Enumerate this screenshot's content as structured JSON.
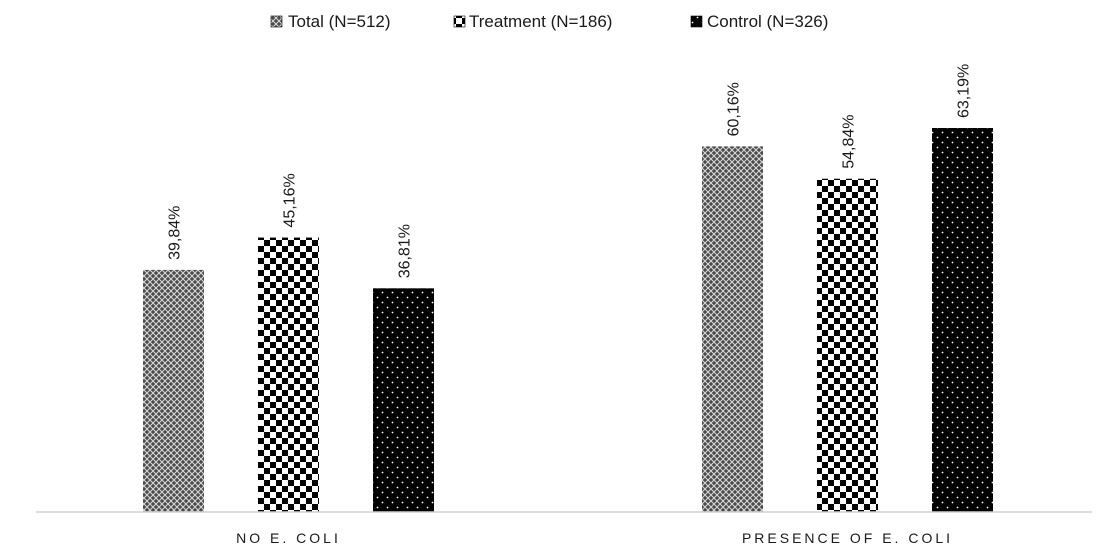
{
  "chart_data": {
    "type": "bar",
    "title": "",
    "xlabel": "",
    "ylabel": "",
    "categories": [
      "NO E. COLI",
      "PRESENCE OF E. COLI"
    ],
    "series": [
      {
        "name": "Total (N=512)",
        "values": [
          39.84,
          60.16
        ],
        "labels": [
          "39,84%",
          "60,16%"
        ],
        "pattern": "crosshatch",
        "color": "#555555"
      },
      {
        "name": "Treatment (N=186)",
        "values": [
          45.16,
          54.84
        ],
        "labels": [
          "45,16%",
          "54,84%"
        ],
        "pattern": "checker",
        "color": "#000000"
      },
      {
        "name": "Control (N=326)",
        "values": [
          36.81,
          63.19
        ],
        "labels": [
          "36,81%",
          "63,19%"
        ],
        "pattern": "dots",
        "color": "#000000"
      }
    ],
    "ylim": [
      0,
      70
    ],
    "grid": false,
    "legend": "top-center",
    "data_labels": "vertical"
  }
}
